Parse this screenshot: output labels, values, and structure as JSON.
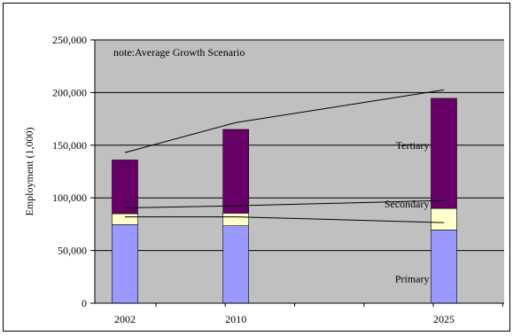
{
  "chart_data": {
    "type": "bar",
    "stacked": true,
    "title": "",
    "xlabel": "",
    "ylabel": "Employment (1,000)",
    "ylim": [
      0,
      250000
    ],
    "y_ticks": [
      0,
      50000,
      100000,
      150000,
      200000,
      250000
    ],
    "y_tick_labels": [
      "0",
      "50,000",
      "100,000",
      "150,000",
      "200,000",
      "250,000"
    ],
    "grid": true,
    "legend": "none",
    "note": "note:Average Growth Scenario",
    "x_axis": {
      "min": 2002,
      "max": 2027,
      "tick_years": [
        2002,
        2010,
        2025
      ],
      "tick_labels": [
        "2002",
        "2010",
        "2025"
      ]
    },
    "categories": [
      "2002",
      "2010",
      "2025"
    ],
    "series": [
      {
        "name": "Primary",
        "color": "#9999ff",
        "values": [
          74500,
          73500,
          69500
        ]
      },
      {
        "name": "Secondary",
        "color": "#ffffcc",
        "values": [
          10500,
          12000,
          20500
        ]
      },
      {
        "name": "Tertiary",
        "color": "#660066",
        "values": [
          51000,
          79500,
          104500
        ]
      }
    ],
    "trend_lines": [
      {
        "x": [
          2002,
          2010,
          2025
        ],
        "y": [
          143000,
          171500,
          202500
        ]
      },
      {
        "x": [
          2002,
          2010,
          2025
        ],
        "y": [
          90500,
          92500,
          97500
        ]
      },
      {
        "x": [
          2002,
          2010,
          2025
        ],
        "y": [
          82000,
          82000,
          76500
        ]
      }
    ],
    "colors": {
      "plot_background": "#c0c0c0",
      "gridline": "#000000",
      "trend_line": "#000000"
    }
  }
}
